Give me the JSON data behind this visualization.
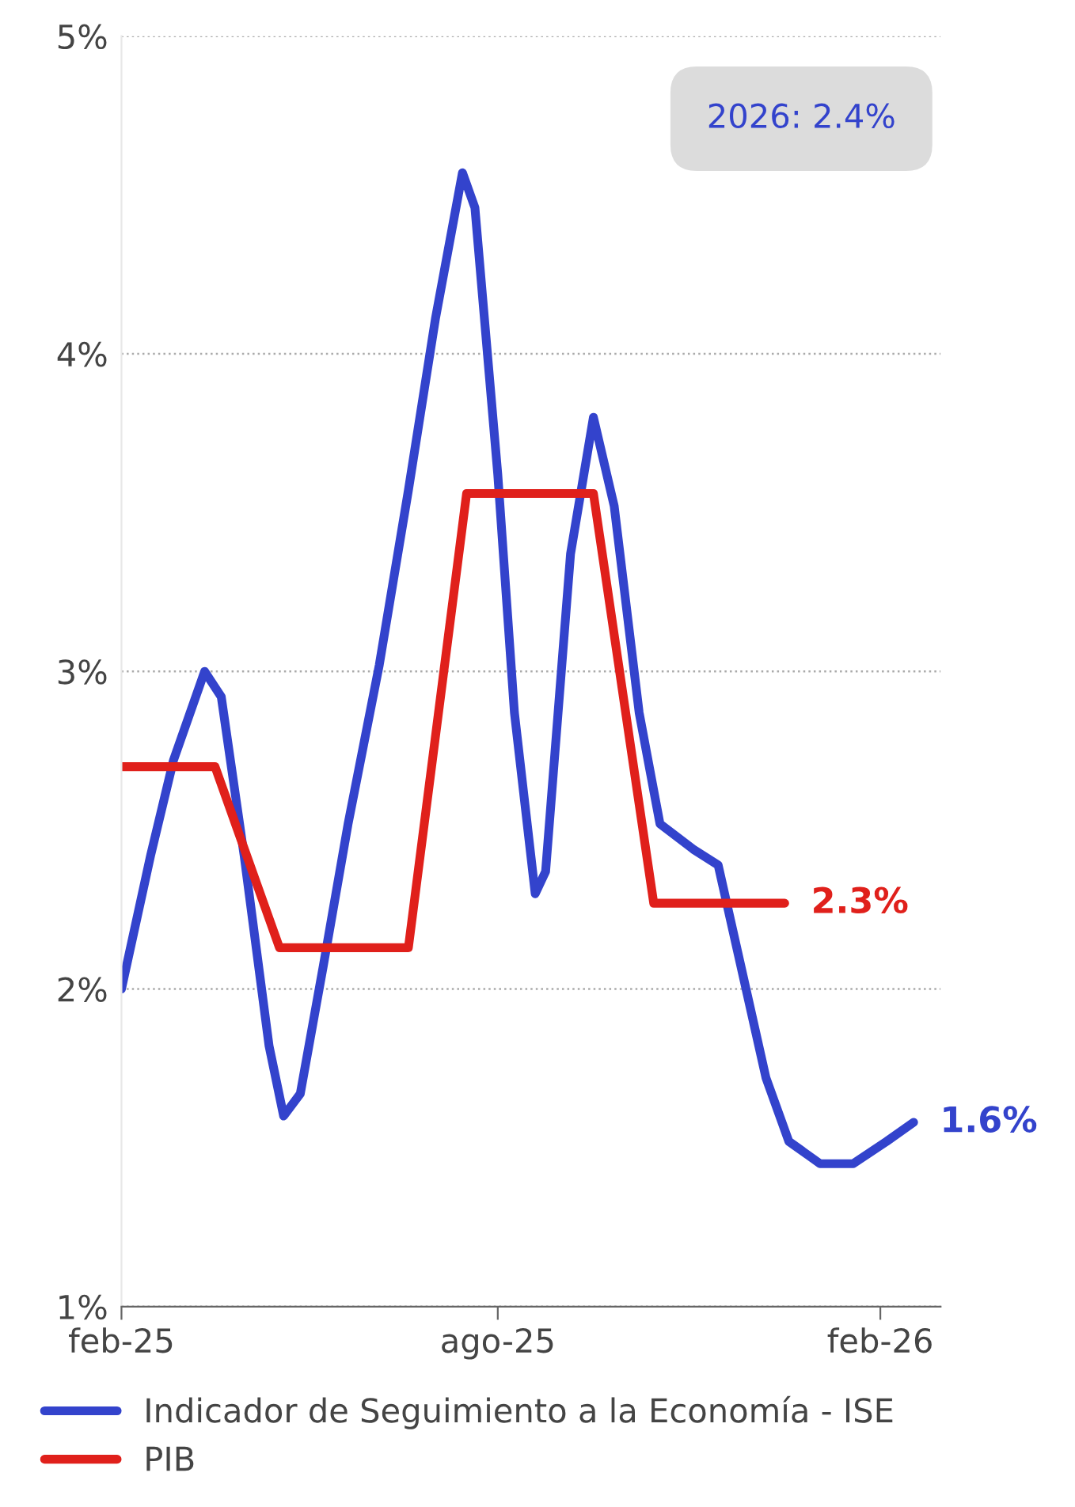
{
  "chart_data": {
    "type": "line",
    "xlim": [
      "2025-02-01",
      "2026-03-02"
    ],
    "xticks": [
      {
        "value": "2025-02-01",
        "label": "feb-25"
      },
      {
        "value": "2025-08-01",
        "label": "ago-25"
      },
      {
        "value": "2026-02-01",
        "label": "feb-26"
      }
    ],
    "ylim": [
      1,
      5
    ],
    "yticks": [
      {
        "value": 1,
        "label": "1%"
      },
      {
        "value": 2,
        "label": "2%"
      },
      {
        "value": 3,
        "label": "3%"
      },
      {
        "value": 4,
        "label": "4%"
      },
      {
        "value": 5,
        "label": "5%"
      }
    ],
    "grid": "y",
    "legend": "bottom",
    "marker": "none",
    "line_style": "solid",
    "series": [
      {
        "name": "Indicador de Seguimiento a la Economía - ISE",
        "color": "#3343cc",
        "x": [
          "2025-02-01",
          "2025-02-15",
          "2025-02-26",
          "2025-03-13",
          "2025-03-21",
          "2025-04-01",
          "2025-04-13",
          "2025-04-20",
          "2025-04-28",
          "2025-05-09",
          "2025-05-21",
          "2025-06-05",
          "2025-06-19",
          "2025-07-02",
          "2025-07-15",
          "2025-07-21",
          "2025-08-01",
          "2025-08-09",
          "2025-08-19",
          "2025-08-24",
          "2025-09-05",
          "2025-09-16",
          "2025-09-26",
          "2025-10-08",
          "2025-10-18",
          "2025-11-03",
          "2025-11-15",
          "2025-11-26",
          "2025-12-08",
          "2025-12-19",
          "2026-01-03",
          "2026-01-19",
          "2026-02-04",
          "2026-02-17"
        ],
        "values": [
          2.0,
          2.42,
          2.72,
          3.0,
          2.92,
          2.42,
          1.82,
          1.6,
          1.67,
          2.07,
          2.52,
          3.02,
          3.57,
          4.11,
          4.57,
          4.46,
          3.62,
          2.87,
          2.3,
          2.37,
          3.37,
          3.8,
          3.52,
          2.87,
          2.52,
          2.44,
          2.39,
          2.07,
          1.72,
          1.52,
          1.45,
          1.45,
          1.52,
          1.58
        ]
      },
      {
        "name": "PIB",
        "color": "#e0201b",
        "x": [
          "2025-02-01",
          "2025-03-18",
          "2025-04-18",
          "2025-06-19",
          "2025-07-17",
          "2025-09-16",
          "2025-10-15",
          "2025-12-17"
        ],
        "values": [
          2.7,
          2.7,
          2.13,
          2.13,
          3.56,
          3.56,
          2.27,
          2.27
        ]
      }
    ],
    "annotations": [
      "2026: 2.4%",
      {
        "text": "2.3%",
        "x": "2025-12-17",
        "y": 2.27
      },
      {
        "text": "1.6%",
        "x": "2026-02-17",
        "y": 1.58
      }
    ]
  }
}
